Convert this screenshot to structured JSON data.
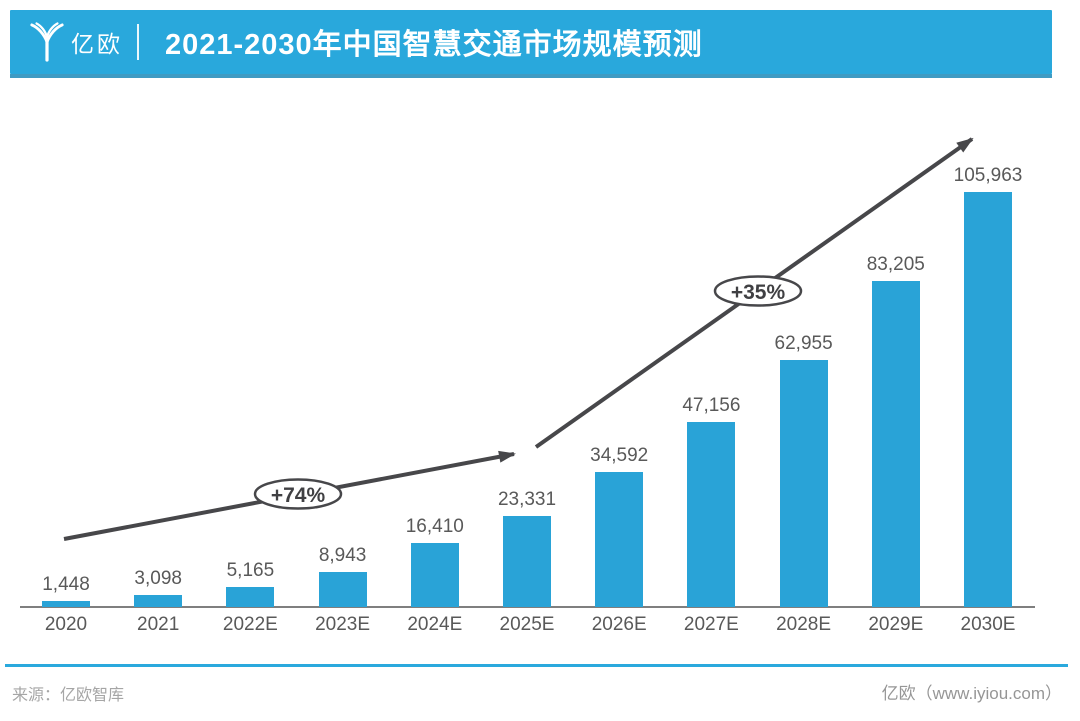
{
  "header": {
    "logo_text": "亿欧",
    "title": "2021-2030年中国智慧交通市场规模预测"
  },
  "chart_data": {
    "type": "bar",
    "title": "2021-2030年中国智慧交通市场规模预测",
    "categories": [
      "2020",
      "2021",
      "2022E",
      "2023E",
      "2024E",
      "2025E",
      "2026E",
      "2027E",
      "2028E",
      "2029E",
      "2030E"
    ],
    "values": [
      1448,
      3098,
      5165,
      8943,
      16410,
      23331,
      34592,
      47156,
      62955,
      83205,
      105963
    ],
    "value_labels": [
      "1,448",
      "3,098",
      "5,165",
      "8,943",
      "16,410",
      "23,331",
      "34,592",
      "47,156",
      "62,955",
      "83,205",
      "105,963"
    ],
    "xlabel": "",
    "ylabel": "",
    "ylim": [
      0,
      110000
    ],
    "grid": false,
    "legend": "none",
    "annotations": [
      {
        "label": "+74%",
        "span": [
          "2020",
          "2025E"
        ]
      },
      {
        "label": "+35%",
        "span": [
          "2025E",
          "2030E"
        ]
      }
    ]
  },
  "colors": {
    "banner_blue": "#29a8dc",
    "banner_edge": "#1d8ab8",
    "bar_blue": "#29a3d7",
    "axis_gray": "#7f7f7f",
    "arrow_gray": "#47474a",
    "label_gray": "#595959",
    "footer_blue": "#2aa9dd"
  },
  "footer": {
    "source": "来源：亿欧智库",
    "credit": "亿欧（www.iyiou.com）"
  }
}
